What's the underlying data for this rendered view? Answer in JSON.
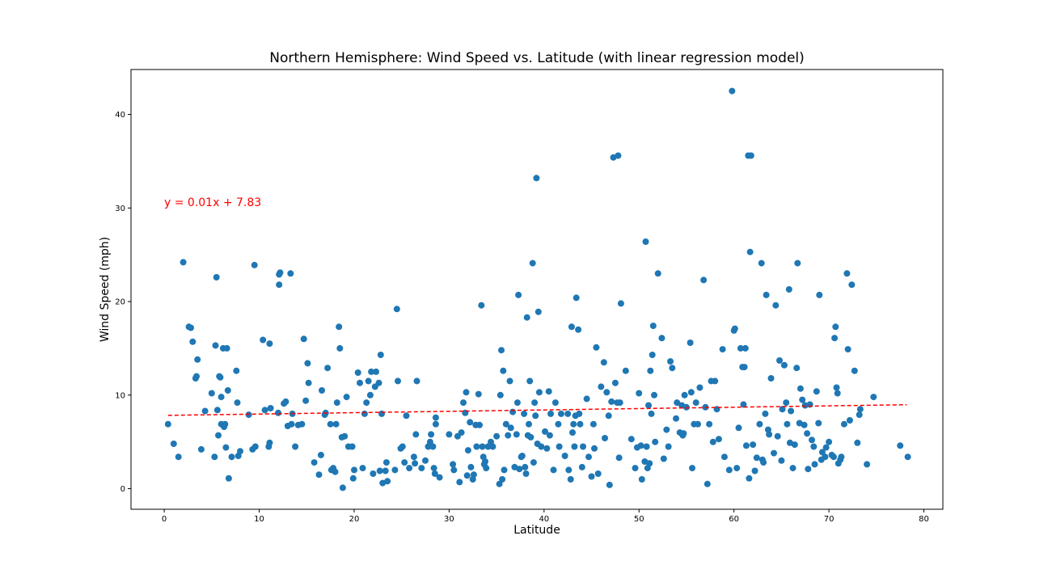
{
  "chart_data": {
    "type": "scatter",
    "title": "Northern Hemisphere:  Wind Speed vs. Latitude (with linear regression model)",
    "xlabel": "Latitude",
    "ylabel": "Wind Speed (mph)",
    "xlim": [
      -3.5,
      82
    ],
    "ylim": [
      -2.2,
      44.8
    ],
    "xticks": [
      0,
      10,
      20,
      30,
      40,
      50,
      60,
      70,
      80
    ],
    "yticks": [
      0,
      10,
      20,
      30,
      40
    ],
    "grid": false,
    "point_color": "#1f77b4",
    "regression": {
      "equation": "y = 0.01x + 7.83",
      "slope": 0.0146,
      "intercept": 7.83,
      "x_range": [
        0.4,
        78.2
      ],
      "color": "#ff0000",
      "style": "dashed"
    },
    "points": [
      [
        0.4,
        6.9
      ],
      [
        1.0,
        4.8
      ],
      [
        1.5,
        3.4
      ],
      [
        2.0,
        24.2
      ],
      [
        2.6,
        17.3
      ],
      [
        2.8,
        17.2
      ],
      [
        3.0,
        15.7
      ],
      [
        3.3,
        11.8
      ],
      [
        3.4,
        12.0
      ],
      [
        3.5,
        13.8
      ],
      [
        3.9,
        4.2
      ],
      [
        4.3,
        8.3
      ],
      [
        5.0,
        10.2
      ],
      [
        5.3,
        3.4
      ],
      [
        5.4,
        15.3
      ],
      [
        5.5,
        22.6
      ],
      [
        5.6,
        8.4
      ],
      [
        5.7,
        5.7
      ],
      [
        5.8,
        12.0
      ],
      [
        5.9,
        11.9
      ],
      [
        6.0,
        9.8
      ],
      [
        6.0,
        6.9
      ],
      [
        6.2,
        15.0
      ],
      [
        6.3,
        6.6
      ],
      [
        6.4,
        6.9
      ],
      [
        6.5,
        4.4
      ],
      [
        6.6,
        15.0
      ],
      [
        6.7,
        10.5
      ],
      [
        6.8,
        1.1
      ],
      [
        7.1,
        3.4
      ],
      [
        7.6,
        12.6
      ],
      [
        7.7,
        9.2
      ],
      [
        7.8,
        3.5
      ],
      [
        8.0,
        4.0
      ],
      [
        8.9,
        7.9
      ],
      [
        9.3,
        4.2
      ],
      [
        9.5,
        23.9
      ],
      [
        9.6,
        4.5
      ],
      [
        10.4,
        15.9
      ],
      [
        10.6,
        8.4
      ],
      [
        11.0,
        4.5
      ],
      [
        11.1,
        4.9
      ],
      [
        11.1,
        15.5
      ],
      [
        11.2,
        8.6
      ],
      [
        12.0,
        8.1
      ],
      [
        12.1,
        22.9
      ],
      [
        12.2,
        23.1
      ],
      [
        12.1,
        21.8
      ],
      [
        12.6,
        9.1
      ],
      [
        12.8,
        9.3
      ],
      [
        13.0,
        6.7
      ],
      [
        13.3,
        23.0
      ],
      [
        13.4,
        6.9
      ],
      [
        13.5,
        8.0
      ],
      [
        13.8,
        4.5
      ],
      [
        14.1,
        6.8
      ],
      [
        14.5,
        6.9
      ],
      [
        14.7,
        16.0
      ],
      [
        14.9,
        9.4
      ],
      [
        15.1,
        13.4
      ],
      [
        15.2,
        11.3
      ],
      [
        15.8,
        2.8
      ],
      [
        16.3,
        1.5
      ],
      [
        16.5,
        3.6
      ],
      [
        16.6,
        10.5
      ],
      [
        16.9,
        7.9
      ],
      [
        17.0,
        8.1
      ],
      [
        17.2,
        12.9
      ],
      [
        17.5,
        6.9
      ],
      [
        17.6,
        2.0
      ],
      [
        17.8,
        2.2
      ],
      [
        18.0,
        1.8
      ],
      [
        18.1,
        6.9
      ],
      [
        18.2,
        9.2
      ],
      [
        18.4,
        17.3
      ],
      [
        18.5,
        15.0
      ],
      [
        18.7,
        5.5
      ],
      [
        18.8,
        0.1
      ],
      [
        19.0,
        5.6
      ],
      [
        19.2,
        9.8
      ],
      [
        19.4,
        4.5
      ],
      [
        19.8,
        4.5
      ],
      [
        19.9,
        1.1
      ],
      [
        20.0,
        2.0
      ],
      [
        20.4,
        12.4
      ],
      [
        20.6,
        11.3
      ],
      [
        20.9,
        2.2
      ],
      [
        21.1,
        8.0
      ],
      [
        21.3,
        9.2
      ],
      [
        21.5,
        11.5
      ],
      [
        21.7,
        10.0
      ],
      [
        21.8,
        12.5
      ],
      [
        22.0,
        1.6
      ],
      [
        22.2,
        10.9
      ],
      [
        22.3,
        12.5
      ],
      [
        22.6,
        11.3
      ],
      [
        22.7,
        1.9
      ],
      [
        22.8,
        14.3
      ],
      [
        22.9,
        8.0
      ],
      [
        23.0,
        0.6
      ],
      [
        23.3,
        1.9
      ],
      [
        23.4,
        2.8
      ],
      [
        23.5,
        0.8
      ],
      [
        24.3,
        2.0
      ],
      [
        24.5,
        19.2
      ],
      [
        24.6,
        11.5
      ],
      [
        24.9,
        4.3
      ],
      [
        25.1,
        4.5
      ],
      [
        25.3,
        2.8
      ],
      [
        25.5,
        7.8
      ],
      [
        25.8,
        2.2
      ],
      [
        26.3,
        3.4
      ],
      [
        26.4,
        2.7
      ],
      [
        26.5,
        5.8
      ],
      [
        26.6,
        11.5
      ],
      [
        27.1,
        2.2
      ],
      [
        27.5,
        3.0
      ],
      [
        27.8,
        4.5
      ],
      [
        28.0,
        5.0
      ],
      [
        28.1,
        5.8
      ],
      [
        28.3,
        4.5
      ],
      [
        28.4,
        2.2
      ],
      [
        28.5,
        1.6
      ],
      [
        28.6,
        7.6
      ],
      [
        28.6,
        6.9
      ],
      [
        29.0,
        1.2
      ],
      [
        30.0,
        5.8
      ],
      [
        30.4,
        2.6
      ],
      [
        30.5,
        2.0
      ],
      [
        30.9,
        5.6
      ],
      [
        31.1,
        0.7
      ],
      [
        31.3,
        6.0
      ],
      [
        31.5,
        9.2
      ],
      [
        31.7,
        8.1
      ],
      [
        31.8,
        10.3
      ],
      [
        31.9,
        1.4
      ],
      [
        32.0,
        4.1
      ],
      [
        32.2,
        7.1
      ],
      [
        32.3,
        2.3
      ],
      [
        32.5,
        1.0
      ],
      [
        32.6,
        1.5
      ],
      [
        32.8,
        6.8
      ],
      [
        32.9,
        4.5
      ],
      [
        33.1,
        10.1
      ],
      [
        33.2,
        6.8
      ],
      [
        33.4,
        19.6
      ],
      [
        33.5,
        4.5
      ],
      [
        33.6,
        3.4
      ],
      [
        33.7,
        2.6
      ],
      [
        33.8,
        2.9
      ],
      [
        33.9,
        2.2
      ],
      [
        34.1,
        4.5
      ],
      [
        34.4,
        5.0
      ],
      [
        34.6,
        4.5
      ],
      [
        35.0,
        5.6
      ],
      [
        35.3,
        0.5
      ],
      [
        35.4,
        10.0
      ],
      [
        35.5,
        14.8
      ],
      [
        35.6,
        1.0
      ],
      [
        35.7,
        12.6
      ],
      [
        35.8,
        2.0
      ],
      [
        36.0,
        6.9
      ],
      [
        36.2,
        5.7
      ],
      [
        36.4,
        11.5
      ],
      [
        36.5,
        6.5
      ],
      [
        36.7,
        8.2
      ],
      [
        36.9,
        2.3
      ],
      [
        37.1,
        5.8
      ],
      [
        37.2,
        9.2
      ],
      [
        37.3,
        20.7
      ],
      [
        37.4,
        2.1
      ],
      [
        37.6,
        3.4
      ],
      [
        37.7,
        3.5
      ],
      [
        37.9,
        8.0
      ],
      [
        38.0,
        2.3
      ],
      [
        38.1,
        1.6
      ],
      [
        38.2,
        18.3
      ],
      [
        38.3,
        5.7
      ],
      [
        38.4,
        6.9
      ],
      [
        38.5,
        11.5
      ],
      [
        38.6,
        5.5
      ],
      [
        38.8,
        24.1
      ],
      [
        39.0,
        9.2
      ],
      [
        38.9,
        2.8
      ],
      [
        39.1,
        7.8
      ],
      [
        39.2,
        33.2
      ],
      [
        39.3,
        4.8
      ],
      [
        39.4,
        18.9
      ],
      [
        39.5,
        10.3
      ],
      [
        39.7,
        4.5
      ],
      [
        40.1,
        6.1
      ],
      [
        40.3,
        4.3
      ],
      [
        40.5,
        10.4
      ],
      [
        40.6,
        5.7
      ],
      [
        40.7,
        8.0
      ],
      [
        41.0,
        2.0
      ],
      [
        41.2,
        9.2
      ],
      [
        41.5,
        6.9
      ],
      [
        41.6,
        4.5
      ],
      [
        41.8,
        8.0
      ],
      [
        42.2,
        3.5
      ],
      [
        42.5,
        8.0
      ],
      [
        42.6,
        2.0
      ],
      [
        42.8,
        1.0
      ],
      [
        42.9,
        17.3
      ],
      [
        43.0,
        6.0
      ],
      [
        43.1,
        6.9
      ],
      [
        43.2,
        4.5
      ],
      [
        43.3,
        7.8
      ],
      [
        43.4,
        20.4
      ],
      [
        43.6,
        17.0
      ],
      [
        43.7,
        8.0
      ],
      [
        43.8,
        6.9
      ],
      [
        44.0,
        2.3
      ],
      [
        44.1,
        4.5
      ],
      [
        44.5,
        9.6
      ],
      [
        44.7,
        3.4
      ],
      [
        45.0,
        1.3
      ],
      [
        45.2,
        6.9
      ],
      [
        45.3,
        4.3
      ],
      [
        45.5,
        15.1
      ],
      [
        45.7,
        1.6
      ],
      [
        46.0,
        10.9
      ],
      [
        46.3,
        13.5
      ],
      [
        46.4,
        5.4
      ],
      [
        46.6,
        10.3
      ],
      [
        46.8,
        7.8
      ],
      [
        46.9,
        0.4
      ],
      [
        47.1,
        9.3
      ],
      [
        47.3,
        35.4
      ],
      [
        47.5,
        11.3
      ],
      [
        47.7,
        9.2
      ],
      [
        47.8,
        35.6
      ],
      [
        47.9,
        3.3
      ],
      [
        48.0,
        9.2
      ],
      [
        48.1,
        19.8
      ],
      [
        48.6,
        12.6
      ],
      [
        49.2,
        5.3
      ],
      [
        49.6,
        2.2
      ],
      [
        49.8,
        4.4
      ],
      [
        50.0,
        10.2
      ],
      [
        50.2,
        4.6
      ],
      [
        50.3,
        1.0
      ],
      [
        50.6,
        2.9
      ],
      [
        50.7,
        26.4
      ],
      [
        50.8,
        4.5
      ],
      [
        50.9,
        2.2
      ],
      [
        51.0,
        8.9
      ],
      [
        51.1,
        2.7
      ],
      [
        51.2,
        12.6
      ],
      [
        51.3,
        8.0
      ],
      [
        51.4,
        14.3
      ],
      [
        51.5,
        17.4
      ],
      [
        51.6,
        10.0
      ],
      [
        51.7,
        5.0
      ],
      [
        52.0,
        23.0
      ],
      [
        52.4,
        16.1
      ],
      [
        52.6,
        3.2
      ],
      [
        52.9,
        6.3
      ],
      [
        53.1,
        4.5
      ],
      [
        53.3,
        13.6
      ],
      [
        53.5,
        12.9
      ],
      [
        53.9,
        7.5
      ],
      [
        54.0,
        9.2
      ],
      [
        54.3,
        6.0
      ],
      [
        54.5,
        8.9
      ],
      [
        54.6,
        5.7
      ],
      [
        54.7,
        5.9
      ],
      [
        54.8,
        10.0
      ],
      [
        55.0,
        8.7
      ],
      [
        55.4,
        15.6
      ],
      [
        55.5,
        10.3
      ],
      [
        55.6,
        2.2
      ],
      [
        55.8,
        6.9
      ],
      [
        56.0,
        9.2
      ],
      [
        56.2,
        6.9
      ],
      [
        56.4,
        10.8
      ],
      [
        56.8,
        22.3
      ],
      [
        57.0,
        8.7
      ],
      [
        57.2,
        0.5
      ],
      [
        57.4,
        6.9
      ],
      [
        57.6,
        11.5
      ],
      [
        57.8,
        5.0
      ],
      [
        58.0,
        11.5
      ],
      [
        58.2,
        8.5
      ],
      [
        58.4,
        5.3
      ],
      [
        58.8,
        14.9
      ],
      [
        59.0,
        3.4
      ],
      [
        59.5,
        2.0
      ],
      [
        59.8,
        42.5
      ],
      [
        60.0,
        16.9
      ],
      [
        60.1,
        17.1
      ],
      [
        60.3,
        2.2
      ],
      [
        60.5,
        6.5
      ],
      [
        60.7,
        15.0
      ],
      [
        60.9,
        13.0
      ],
      [
        61.0,
        9.0
      ],
      [
        61.1,
        13.0
      ],
      [
        61.2,
        15.0
      ],
      [
        61.3,
        4.6
      ],
      [
        61.5,
        35.6
      ],
      [
        61.6,
        1.1
      ],
      [
        61.7,
        25.3
      ],
      [
        61.8,
        35.6
      ],
      [
        62.0,
        4.7
      ],
      [
        62.2,
        1.9
      ],
      [
        62.4,
        3.3
      ],
      [
        62.7,
        6.9
      ],
      [
        62.9,
        24.1
      ],
      [
        63.0,
        3.1
      ],
      [
        63.1,
        2.8
      ],
      [
        63.3,
        8.0
      ],
      [
        63.4,
        20.7
      ],
      [
        63.6,
        6.3
      ],
      [
        63.7,
        5.8
      ],
      [
        63.9,
        11.8
      ],
      [
        64.2,
        3.8
      ],
      [
        64.4,
        19.6
      ],
      [
        64.6,
        5.6
      ],
      [
        64.8,
        13.7
      ],
      [
        65.0,
        3.0
      ],
      [
        65.1,
        8.5
      ],
      [
        65.3,
        13.2
      ],
      [
        65.5,
        9.2
      ],
      [
        65.6,
        6.9
      ],
      [
        65.8,
        21.3
      ],
      [
        65.9,
        4.9
      ],
      [
        66.0,
        8.3
      ],
      [
        66.2,
        2.2
      ],
      [
        66.4,
        4.7
      ],
      [
        66.6,
        12.9
      ],
      [
        66.7,
        24.1
      ],
      [
        66.9,
        7.0
      ],
      [
        67.0,
        10.7
      ],
      [
        67.2,
        9.5
      ],
      [
        67.4,
        6.8
      ],
      [
        67.5,
        8.9
      ],
      [
        67.7,
        5.9
      ],
      [
        67.8,
        2.1
      ],
      [
        68.0,
        9.0
      ],
      [
        68.2,
        5.2
      ],
      [
        68.4,
        4.5
      ],
      [
        68.5,
        2.6
      ],
      [
        68.7,
        10.4
      ],
      [
        68.9,
        7.0
      ],
      [
        69.0,
        20.7
      ],
      [
        69.2,
        3.1
      ],
      [
        69.3,
        3.9
      ],
      [
        69.6,
        3.4
      ],
      [
        69.7,
        4.4
      ],
      [
        70.0,
        5.0
      ],
      [
        70.3,
        3.6
      ],
      [
        70.5,
        3.4
      ],
      [
        70.6,
        16.1
      ],
      [
        70.7,
        17.3
      ],
      [
        70.8,
        10.8
      ],
      [
        70.9,
        10.2
      ],
      [
        71.0,
        2.7
      ],
      [
        71.2,
        3.1
      ],
      [
        71.3,
        3.4
      ],
      [
        71.6,
        6.9
      ],
      [
        71.9,
        23.0
      ],
      [
        72.0,
        14.9
      ],
      [
        72.2,
        7.3
      ],
      [
        72.4,
        21.8
      ],
      [
        72.7,
        12.6
      ],
      [
        73.0,
        4.9
      ],
      [
        73.2,
        7.9
      ],
      [
        73.3,
        8.5
      ],
      [
        74.0,
        2.6
      ],
      [
        74.7,
        9.8
      ],
      [
        77.5,
        4.6
      ],
      [
        78.3,
        3.4
      ]
    ]
  }
}
